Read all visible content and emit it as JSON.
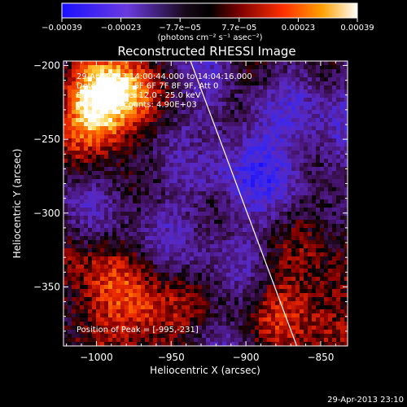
{
  "chart_data": {
    "type": "heatmap",
    "title": "Reconstructed RHESSI Image",
    "xlabel": "Heliocentric X (arcsec)",
    "ylabel": "Heliocentric Y (arcsec)",
    "xlim": [
      -1022,
      -832
    ],
    "ylim": [
      -390,
      -197
    ],
    "x_ticks": [
      -1000,
      -950,
      -900,
      -850
    ],
    "x_tick_labels": [
      "−1000",
      "−950",
      "−900",
      "−850"
    ],
    "y_ticks": [
      -200,
      -250,
      -300,
      -350
    ],
    "y_tick_labels": [
      "−200",
      "−250",
      "−300",
      "−350"
    ],
    "colorbar": {
      "min": -0.00039,
      "max": 0.00039,
      "tick_labels": [
        "−0.00039",
        "−0.00023",
        "−7.7e−05",
        "7.7e−05",
        "0.00023",
        "0.00039"
      ],
      "unit_label": "(photons cm⁻² s⁻¹ asec⁻²)"
    },
    "annotations": [
      "29-Apr-2013 14:00:44.000 to 14:04:16.000",
      "Detectors: 3F 5F 6F 7F 8F 9F, Att 0",
      "Energy Range: 12.0 - 25.0 keV",
      "Clean     Total counts: 4.90E+03"
    ],
    "peak_label": "Position of Peak = [-995,-231]",
    "peak": {
      "x": -995,
      "y": -231
    },
    "limb_line": [
      [
        -937,
        -197
      ],
      [
        -866,
        -390
      ]
    ],
    "colors": {
      "limb": "#ffffff",
      "background": "#000000"
    }
  },
  "footer": {
    "timestamp": "29-Apr-2013 23:10"
  }
}
